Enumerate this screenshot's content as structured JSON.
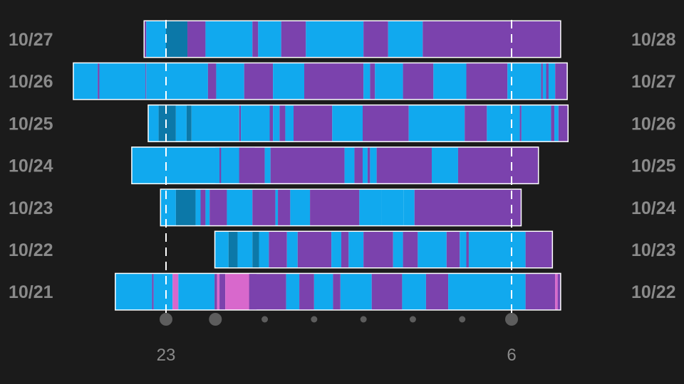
{
  "chart_data": {
    "type": "timeline",
    "title": "",
    "xlabel": "",
    "ylabel": "",
    "x_axis": {
      "unit": "hour of day",
      "range_hours_from_21": [
        -0.35,
        6.95
      ],
      "tick_labels": [
        {
          "label": "23",
          "hour": 23
        },
        {
          "label": "6",
          "hour": 6
        }
      ],
      "dot_marks": [
        {
          "hour": 23,
          "size": "large"
        },
        {
          "hour": 0,
          "size": "large"
        },
        {
          "hour": 1,
          "size": "small"
        },
        {
          "hour": 2,
          "size": "small"
        },
        {
          "hour": 3,
          "size": "small"
        },
        {
          "hour": 4,
          "size": "small"
        },
        {
          "hour": 5,
          "size": "small"
        },
        {
          "hour": 6,
          "size": "large"
        }
      ],
      "reference_lines": [
        "23:00",
        "06:00"
      ]
    },
    "stage_colors": {
      "light": "#11a9ee",
      "deep": "#0c78a8",
      "rem": "#7b42ad",
      "awake": "#d868cc"
    },
    "nights": [
      {
        "start_label": "10/27",
        "end_label": "10/28",
        "start": "22:34",
        "end": "06:59",
        "segments": [
          [
            "22:34",
            "22:36",
            "rem"
          ],
          [
            "22:36",
            "23:00",
            "light"
          ],
          [
            "23:00",
            "23:26",
            "deep"
          ],
          [
            "23:26",
            "23:48",
            "rem"
          ],
          [
            "23:48",
            "00:45",
            "light"
          ],
          [
            "00:45",
            "00:52",
            "rem"
          ],
          [
            "00:52",
            "01:20",
            "light"
          ],
          [
            "01:20",
            "01:50",
            "rem"
          ],
          [
            "01:50",
            "03:00",
            "light"
          ],
          [
            "03:00",
            "03:30",
            "rem"
          ],
          [
            "03:30",
            "04:12",
            "light"
          ],
          [
            "04:12",
            "06:59",
            "rem"
          ]
        ]
      },
      {
        "start_label": "10/26",
        "end_label": "10/27",
        "start": "21:08",
        "end": "07:07",
        "segments": [
          [
            "21:08",
            "21:37",
            "light"
          ],
          [
            "21:37",
            "21:39",
            "rem"
          ],
          [
            "21:39",
            "22:35",
            "light"
          ],
          [
            "22:35",
            "22:36",
            "rem"
          ],
          [
            "22:36",
            "23:51",
            "light"
          ],
          [
            "23:51",
            "24:01",
            "rem"
          ],
          [
            "24:01",
            "00:35",
            "light"
          ],
          [
            "00:35",
            "01:10",
            "rem"
          ],
          [
            "01:10",
            "01:48",
            "light"
          ],
          [
            "01:48",
            "03:00",
            "rem"
          ],
          [
            "03:00",
            "03:08",
            "light"
          ],
          [
            "03:08",
            "03:14",
            "rem"
          ],
          [
            "03:14",
            "03:48",
            "light"
          ],
          [
            "03:48",
            "04:25",
            "rem"
          ],
          [
            "04:25",
            "05:05",
            "light"
          ],
          [
            "05:05",
            "05:55",
            "rem"
          ],
          [
            "05:55",
            "06:36",
            "light"
          ],
          [
            "06:36",
            "06:38",
            "rem"
          ],
          [
            "06:38",
            "06:42",
            "light"
          ],
          [
            "06:42",
            "06:45",
            "rem"
          ],
          [
            "06:45",
            "06:53",
            "light"
          ],
          [
            "06:53",
            "07:07",
            "rem"
          ]
        ]
      },
      {
        "start_label": "10/25",
        "end_label": "10/26",
        "start": "22:39",
        "end": "07:08",
        "segments": [
          [
            "22:39",
            "22:51",
            "light"
          ],
          [
            "22:51",
            "23:12",
            "deep"
          ],
          [
            "23:12",
            "23:25",
            "light"
          ],
          [
            "23:25",
            "23:31",
            "deep"
          ],
          [
            "23:31",
            "24:29",
            "light"
          ],
          [
            "24:29",
            "00:31",
            "rem"
          ],
          [
            "00:31",
            "01:06",
            "light"
          ],
          [
            "01:06",
            "01:10",
            "rem"
          ],
          [
            "01:10",
            "01:18",
            "light"
          ],
          [
            "01:18",
            "01:25",
            "rem"
          ],
          [
            "01:25",
            "01:35",
            "light"
          ],
          [
            "01:35",
            "02:22",
            "rem"
          ],
          [
            "02:22",
            "02:59",
            "light"
          ],
          [
            "02:59",
            "03:55",
            "rem"
          ],
          [
            "03:55",
            "05:03",
            "light"
          ],
          [
            "05:03",
            "05:30",
            "rem"
          ],
          [
            "05:30",
            "06:10",
            "light"
          ],
          [
            "06:10",
            "06:12",
            "rem"
          ],
          [
            "06:12",
            "06:48",
            "light"
          ],
          [
            "06:48",
            "06:52",
            "rem"
          ],
          [
            "06:52",
            "06:57",
            "light"
          ],
          [
            "06:57",
            "07:08",
            "rem"
          ]
        ]
      },
      {
        "start_label": "10/24",
        "end_label": "10/25",
        "start": "22:19",
        "end": "06:32",
        "segments": [
          [
            "22:19",
            "24:08",
            "light"
          ],
          [
            "24:08",
            "24:18",
            "rem"
          ],
          [
            "24:18",
            "24:25",
            "light"
          ],
          [
            "24:25",
            "24:37",
            "rem"
          ],
          [
            "24:37",
            "24:47",
            "light"
          ],
          [
            "24:47",
            "00:00",
            "rem"
          ],
          [
            "00:00",
            "00:05",
            "light"
          ],
          [
            "00:05",
            "00:07",
            "rem"
          ],
          [
            "00:07",
            "00:29",
            "light"
          ],
          [
            "00:29",
            "01:00",
            "rem"
          ],
          [
            "01:00",
            "01:07",
            "light"
          ],
          [
            "01:07",
            "02:37",
            "rem"
          ],
          [
            "02:37",
            "02:49",
            "light"
          ],
          [
            "02:49",
            "02:59",
            "rem"
          ],
          [
            "02:59",
            "03:05",
            "light"
          ],
          [
            "03:05",
            "03:08",
            "rem"
          ],
          [
            "03:08",
            "03:16",
            "light"
          ],
          [
            "03:16",
            "04:23",
            "rem"
          ],
          [
            "04:23",
            "04:55",
            "light"
          ],
          [
            "04:55",
            "06:32",
            "rem"
          ]
        ]
      },
      {
        "start_label": "10/23",
        "end_label": "10/24",
        "start": "22:54",
        "end": "06:11",
        "segments": [
          [
            "22:54",
            "23:12",
            "light"
          ],
          [
            "23:12",
            "23:36",
            "deep"
          ],
          [
            "23:36",
            "23:42",
            "light"
          ],
          [
            "23:42",
            "23:48",
            "rem"
          ],
          [
            "23:48",
            "23:53",
            "light"
          ],
          [
            "23:53",
            "24:14",
            "rem"
          ],
          [
            "24:14",
            "24:45",
            "light"
          ],
          [
            "24:45",
            "01:13",
            "rem"
          ],
          [
            "01:13",
            "01:16",
            "light"
          ],
          [
            "01:16",
            "01:31",
            "rem"
          ],
          [
            "01:31",
            "01:55",
            "light"
          ],
          [
            "01:55",
            "02:55",
            "rem"
          ],
          [
            "02:55",
            "03:22",
            "light"
          ],
          [
            "03:22",
            "03:49",
            "light"
          ],
          [
            "03:49",
            "04:02",
            "light"
          ],
          [
            "04:02",
            "06:11",
            "rem"
          ]
        ]
      },
      {
        "start_label": "10/22",
        "end_label": "10/23",
        "start": "00:00",
        "end": "06:49",
        "segments": [
          [
            "00:00",
            "00:16",
            "light"
          ],
          [
            "00:16",
            "00:27",
            "deep"
          ],
          [
            "00:27",
            "00:45",
            "light"
          ],
          [
            "00:45",
            "00:53",
            "deep"
          ],
          [
            "00:53",
            "01:05",
            "light"
          ],
          [
            "01:05",
            "01:27",
            "rem"
          ],
          [
            "01:27",
            "01:40",
            "light"
          ],
          [
            "01:40",
            "02:21",
            "rem"
          ],
          [
            "02:21",
            "02:33",
            "light"
          ],
          [
            "02:33",
            "02:42",
            "rem"
          ],
          [
            "02:42",
            "03:00",
            "light"
          ],
          [
            "03:00",
            "03:36",
            "rem"
          ],
          [
            "03:36",
            "03:48",
            "light"
          ],
          [
            "03:48",
            "04:06",
            "rem"
          ],
          [
            "04:06",
            "04:41",
            "light"
          ],
          [
            "04:41",
            "04:57",
            "rem"
          ],
          [
            "04:57",
            "05:05",
            "light"
          ],
          [
            "05:05",
            "05:08",
            "rem"
          ],
          [
            "05:08",
            "06:17",
            "light"
          ],
          [
            "06:17",
            "06:49",
            "rem"
          ]
        ]
      },
      {
        "start_label": "10/21",
        "end_label": "10/22",
        "start": "21:59",
        "end": "06:59",
        "segments": [
          [
            "21:59",
            "22:43",
            "light"
          ],
          [
            "22:43",
            "22:45",
            "rem"
          ],
          [
            "22:45",
            "23:08",
            "light"
          ],
          [
            "23:08",
            "23:15",
            "awake"
          ],
          [
            "23:15",
            "23:59",
            "light"
          ],
          [
            "23:59",
            "24:02",
            "rem"
          ],
          [
            "24:02",
            "24:05",
            "awake"
          ],
          [
            "24:05",
            "24:12",
            "rem"
          ],
          [
            "24:12",
            "24:44",
            "awake"
          ],
          [
            "24:44",
            "24:45",
            "light"
          ],
          [
            "24:45",
            "24:49",
            "awake"
          ],
          [
            "24:49",
            "00:41",
            "light"
          ],
          [
            "00:41",
            "01:26",
            "rem"
          ],
          [
            "01:26",
            "01:42",
            "light"
          ],
          [
            "01:42",
            "02:00",
            "rem"
          ],
          [
            "02:00",
            "02:23",
            "light"
          ],
          [
            "02:23",
            "02:32",
            "rem"
          ],
          [
            "02:32",
            "03:10",
            "light"
          ],
          [
            "03:10",
            "03:47",
            "rem"
          ],
          [
            "03:47",
            "04:16",
            "light"
          ],
          [
            "04:16",
            "04:43",
            "rem"
          ],
          [
            "04:43",
            "06:17",
            "light"
          ],
          [
            "06:17",
            "06:53",
            "rem"
          ],
          [
            "06:53",
            "06:56",
            "awake"
          ],
          [
            "06:56",
            "06:59",
            "rem"
          ]
        ]
      }
    ]
  }
}
